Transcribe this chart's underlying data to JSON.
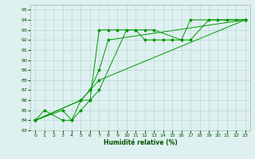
{
  "xlabel": "Humidité relative (%)",
  "bg_color": "#dff0f0",
  "grid_color": "#b8d8d8",
  "line_color": "#009900",
  "xlim": [
    -0.5,
    23.5
  ],
  "ylim": [
    83,
    95.5
  ],
  "xticks": [
    0,
    1,
    2,
    3,
    4,
    5,
    6,
    7,
    8,
    9,
    10,
    11,
    12,
    13,
    14,
    15,
    16,
    17,
    18,
    19,
    20,
    21,
    22,
    23
  ],
  "yticks": [
    83,
    84,
    85,
    86,
    87,
    88,
    89,
    90,
    91,
    92,
    93,
    94,
    95
  ],
  "s1_x": [
    0,
    1,
    3,
    4,
    5,
    6,
    7,
    8,
    9,
    10,
    11,
    12,
    13,
    14,
    15,
    16,
    17,
    19,
    20,
    21,
    22,
    23
  ],
  "s1_y": [
    84,
    85,
    84,
    84,
    86,
    86,
    93,
    93,
    93,
    93,
    93,
    92,
    92,
    92,
    92,
    92,
    92,
    94,
    94,
    94,
    94,
    94
  ],
  "s2_x": [
    0,
    3,
    4,
    5,
    6,
    7,
    10,
    11,
    12,
    13,
    16,
    17,
    23
  ],
  "s2_y": [
    84,
    85,
    84,
    85,
    86,
    87,
    93,
    93,
    93,
    93,
    92,
    94,
    94
  ],
  "s3_x": [
    0,
    5,
    6,
    7,
    8,
    23
  ],
  "s3_y": [
    84,
    86,
    87,
    89,
    92,
    94
  ],
  "s4_x": [
    0,
    5,
    6,
    7,
    23
  ],
  "s4_y": [
    84,
    86,
    87,
    88,
    94
  ]
}
